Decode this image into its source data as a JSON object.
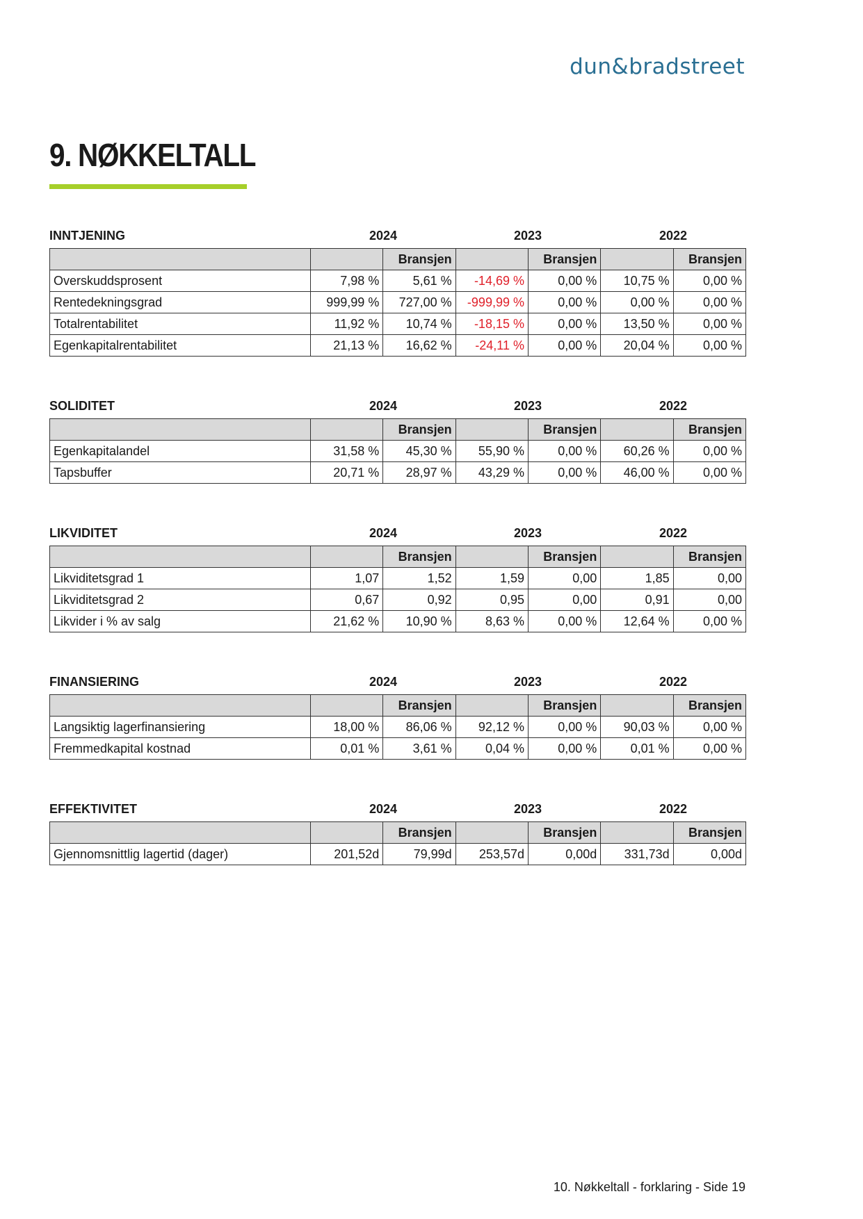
{
  "logo": "dun&bradstreet",
  "title": "9. NØKKELTALL",
  "sections": [
    {
      "heading": "INNTJENING",
      "years": [
        "2024",
        "2023",
        "2022"
      ],
      "subheader": [
        "Bransjen",
        "Bransjen",
        "Bransjen"
      ],
      "rows": [
        {
          "label": "Overskuddsprosent",
          "values": [
            "7,98 %",
            "5,61 %",
            "-14,69 %",
            "0,00 %",
            "10,75 %",
            "0,00 %"
          ]
        },
        {
          "label": "Rentedekningsgrad",
          "values": [
            "999,99 %",
            "727,00 %",
            "-999,99 %",
            "0,00 %",
            "0,00 %",
            "0,00 %"
          ]
        },
        {
          "label": "Totalrentabilitet",
          "values": [
            "11,92 %",
            "10,74 %",
            "-18,15 %",
            "0,00 %",
            "13,50 %",
            "0,00 %"
          ]
        },
        {
          "label": "Egenkapitalrentabilitet",
          "values": [
            "21,13 %",
            "16,62 %",
            "-24,11 %",
            "0,00 %",
            "20,04 %",
            "0,00 %"
          ]
        }
      ]
    },
    {
      "heading": "SOLIDITET",
      "years": [
        "2024",
        "2023",
        "2022"
      ],
      "subheader": [
        "Bransjen",
        "Bransjen",
        "Bransjen"
      ],
      "rows": [
        {
          "label": "Egenkapitalandel",
          "values": [
            "31,58 %",
            "45,30 %",
            "55,90 %",
            "0,00 %",
            "60,26 %",
            "0,00 %"
          ]
        },
        {
          "label": "Tapsbuffer",
          "values": [
            "20,71 %",
            "28,97 %",
            "43,29 %",
            "0,00 %",
            "46,00 %",
            "0,00 %"
          ]
        }
      ]
    },
    {
      "heading": "LIKVIDITET",
      "years": [
        "2024",
        "2023",
        "2022"
      ],
      "subheader": [
        "Bransjen",
        "Bransjen",
        "Bransjen"
      ],
      "rows": [
        {
          "label": "Likviditetsgrad 1",
          "values": [
            "1,07",
            "1,52",
            "1,59",
            "0,00",
            "1,85",
            "0,00"
          ]
        },
        {
          "label": "Likviditetsgrad 2",
          "values": [
            "0,67",
            "0,92",
            "0,95",
            "0,00",
            "0,91",
            "0,00"
          ]
        },
        {
          "label": "Likvider i % av salg",
          "values": [
            "21,62 %",
            "10,90 %",
            "8,63 %",
            "0,00 %",
            "12,64 %",
            "0,00 %"
          ]
        }
      ]
    },
    {
      "heading": "FINANSIERING",
      "years": [
        "2024",
        "2023",
        "2022"
      ],
      "subheader": [
        "Bransjen",
        "Bransjen",
        "Bransjen"
      ],
      "rows": [
        {
          "label": "Langsiktig lagerfinansiering",
          "values": [
            "18,00 %",
            "86,06 %",
            "92,12 %",
            "0,00 %",
            "90,03 %",
            "0,00 %"
          ]
        },
        {
          "label": "Fremmedkapital kostnad",
          "values": [
            "0,01 %",
            "3,61 %",
            "0,04 %",
            "0,00 %",
            "0,01 %",
            "0,00 %"
          ]
        }
      ]
    },
    {
      "heading": "EFFEKTIVITET",
      "years": [
        "2024",
        "2023",
        "2022"
      ],
      "subheader": [
        "Bransjen",
        "Bransjen",
        "Bransjen"
      ],
      "rows": [
        {
          "label": "Gjennomsnittlig lagertid (dager)",
          "values": [
            "201,52d",
            "79,99d",
            "253,57d",
            "0,00d",
            "331,73d",
            "0,00d"
          ]
        }
      ]
    }
  ],
  "footer": "10. Nøkkeltall - forklaring - Side 19"
}
